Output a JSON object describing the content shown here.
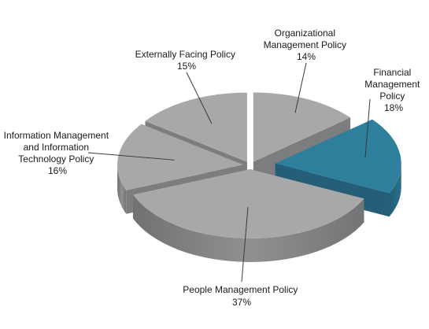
{
  "chart_data": {
    "type": "pie",
    "style": "3d-exploded",
    "categories": [
      "Organizational Management Policy",
      "Financial Management Policy",
      "People Management Policy",
      "Information Management and Information Technology Policy",
      "Externally Facing Policy"
    ],
    "values": [
      14,
      18,
      37,
      16,
      15
    ],
    "value_labels": [
      "14%",
      "18%",
      "37%",
      "16%",
      "15%"
    ],
    "colors": {
      "default": "#a6a8aa",
      "highlight": "#2e7f9c"
    },
    "highlight_index": 1,
    "legend": "none",
    "labels": {
      "organizational": {
        "lines": [
          "Organizational",
          "Management Policy"
        ],
        "pct": "14%"
      },
      "financial": {
        "lines": [
          "Financial",
          "Management",
          "Policy"
        ],
        "pct": "18%"
      },
      "people": {
        "lines": [
          "People Management Policy"
        ],
        "pct": "37%"
      },
      "information": {
        "lines": [
          "Information Management",
          "and Information",
          "Technology Policy"
        ],
        "pct": "16%"
      },
      "externally": {
        "lines": [
          "Externally Facing Policy"
        ],
        "pct": "15%"
      }
    }
  }
}
